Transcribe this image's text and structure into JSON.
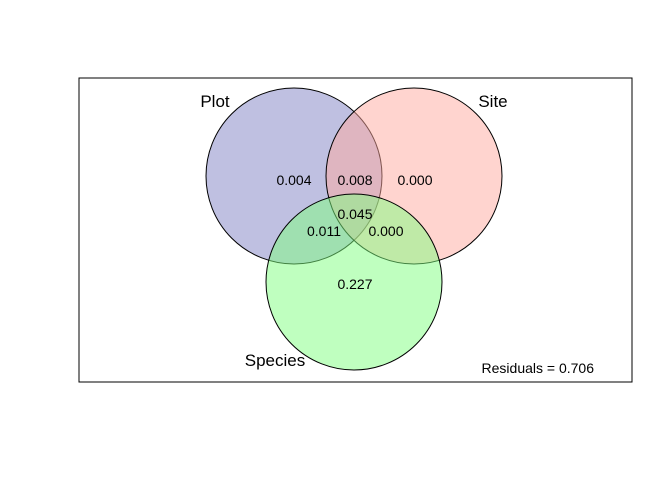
{
  "diagram": {
    "sets": [
      {
        "name": "Plot",
        "fill": "#7f82c4"
      },
      {
        "name": "Site",
        "fill": "#ffaaa0"
      },
      {
        "name": "Species",
        "fill": "#80ff80"
      }
    ],
    "regions": {
      "plot_only": "0.004",
      "plot_site": "0.008",
      "site_only": "0.000",
      "all_three": "0.045",
      "plot_species": "0.011",
      "site_species": "0.000",
      "species_only": "0.227"
    },
    "residuals_label": "Residuals = 0.706"
  }
}
